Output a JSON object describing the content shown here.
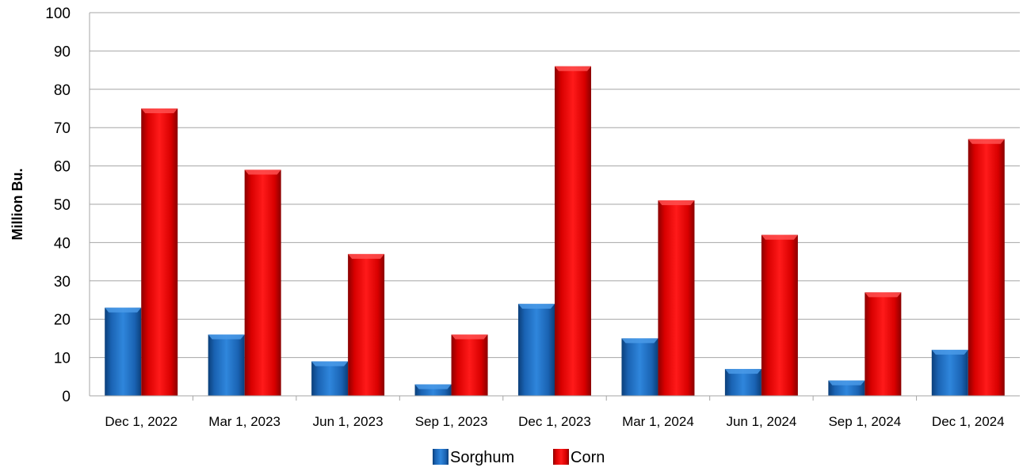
{
  "chart_data": {
    "type": "bar",
    "categories": [
      "Dec 1, 2022",
      "Mar 1, 2023",
      "Jun 1, 2023",
      "Sep 1, 2023",
      "Dec 1, 2023",
      "Mar 1, 2024",
      "Jun 1, 2024",
      "Sep 1, 2024",
      "Dec 1, 2024"
    ],
    "series": [
      {
        "name": "Sorghum",
        "values": [
          23,
          16,
          9,
          3,
          24,
          15,
          7,
          4,
          12
        ],
        "color": "#1f6fc4"
      },
      {
        "name": "Corn",
        "values": [
          75,
          59,
          37,
          16,
          86,
          51,
          42,
          27,
          67
        ],
        "color": "#e80000"
      }
    ],
    "title": "",
    "xlabel": "",
    "ylabel": "Million Bu.",
    "ylim": [
      0,
      100
    ],
    "yticks": [
      0,
      10,
      20,
      30,
      40,
      50,
      60,
      70,
      80,
      90,
      100
    ],
    "grid": true,
    "legend_position": "bottom-center"
  }
}
